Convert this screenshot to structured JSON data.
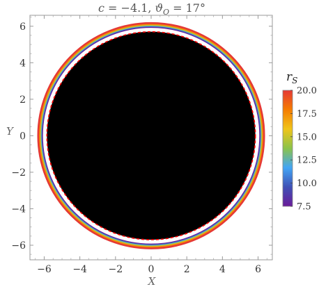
{
  "chart_data": {
    "type": "scatter",
    "title": "c = −4.1, ϑO = 17°",
    "xlabel": "X",
    "ylabel": "Y",
    "xlim": [
      -6.8,
      6.8
    ],
    "ylim": [
      -6.8,
      6.6
    ],
    "x_ticks": [
      -6,
      -4,
      -2,
      0,
      2,
      4,
      6
    ],
    "x_tick_labels": [
      "−6",
      "−4",
      "−2",
      "0",
      "2",
      "4",
      "6"
    ],
    "y_ticks": [
      -6,
      -4,
      -2,
      0,
      2,
      4,
      6
    ],
    "y_tick_labels": [
      "−6",
      "−4",
      "−2",
      "0",
      "2",
      "4",
      "6"
    ],
    "shadow": {
      "radius": 5.85,
      "fill": "#000000",
      "edge": "dashed",
      "edge_color": "#ff0000"
    },
    "rings": {
      "description": "ring images colored by emission radius rS",
      "rS": [
        7.5,
        10.0,
        12.5,
        15.0,
        17.5,
        20.0
      ],
      "radius": [
        6.12,
        6.16,
        6.2,
        6.24,
        6.28,
        6.34
      ]
    },
    "colorbar": {
      "label": "rS",
      "min": 7.5,
      "max": 20.0,
      "ticks": [
        7.5,
        10.0,
        12.5,
        15.0,
        17.5,
        20.0
      ],
      "tick_labels": [
        "7.5",
        "10.0",
        "12.5",
        "15.0",
        "17.5",
        "20.0"
      ],
      "colors": [
        "#6a1b9a",
        "#3f51b5",
        "#42a5f5",
        "#8bc34a",
        "#f0c419",
        "#f57c00",
        "#e53935"
      ]
    },
    "grid": false,
    "legend_position": "right"
  }
}
